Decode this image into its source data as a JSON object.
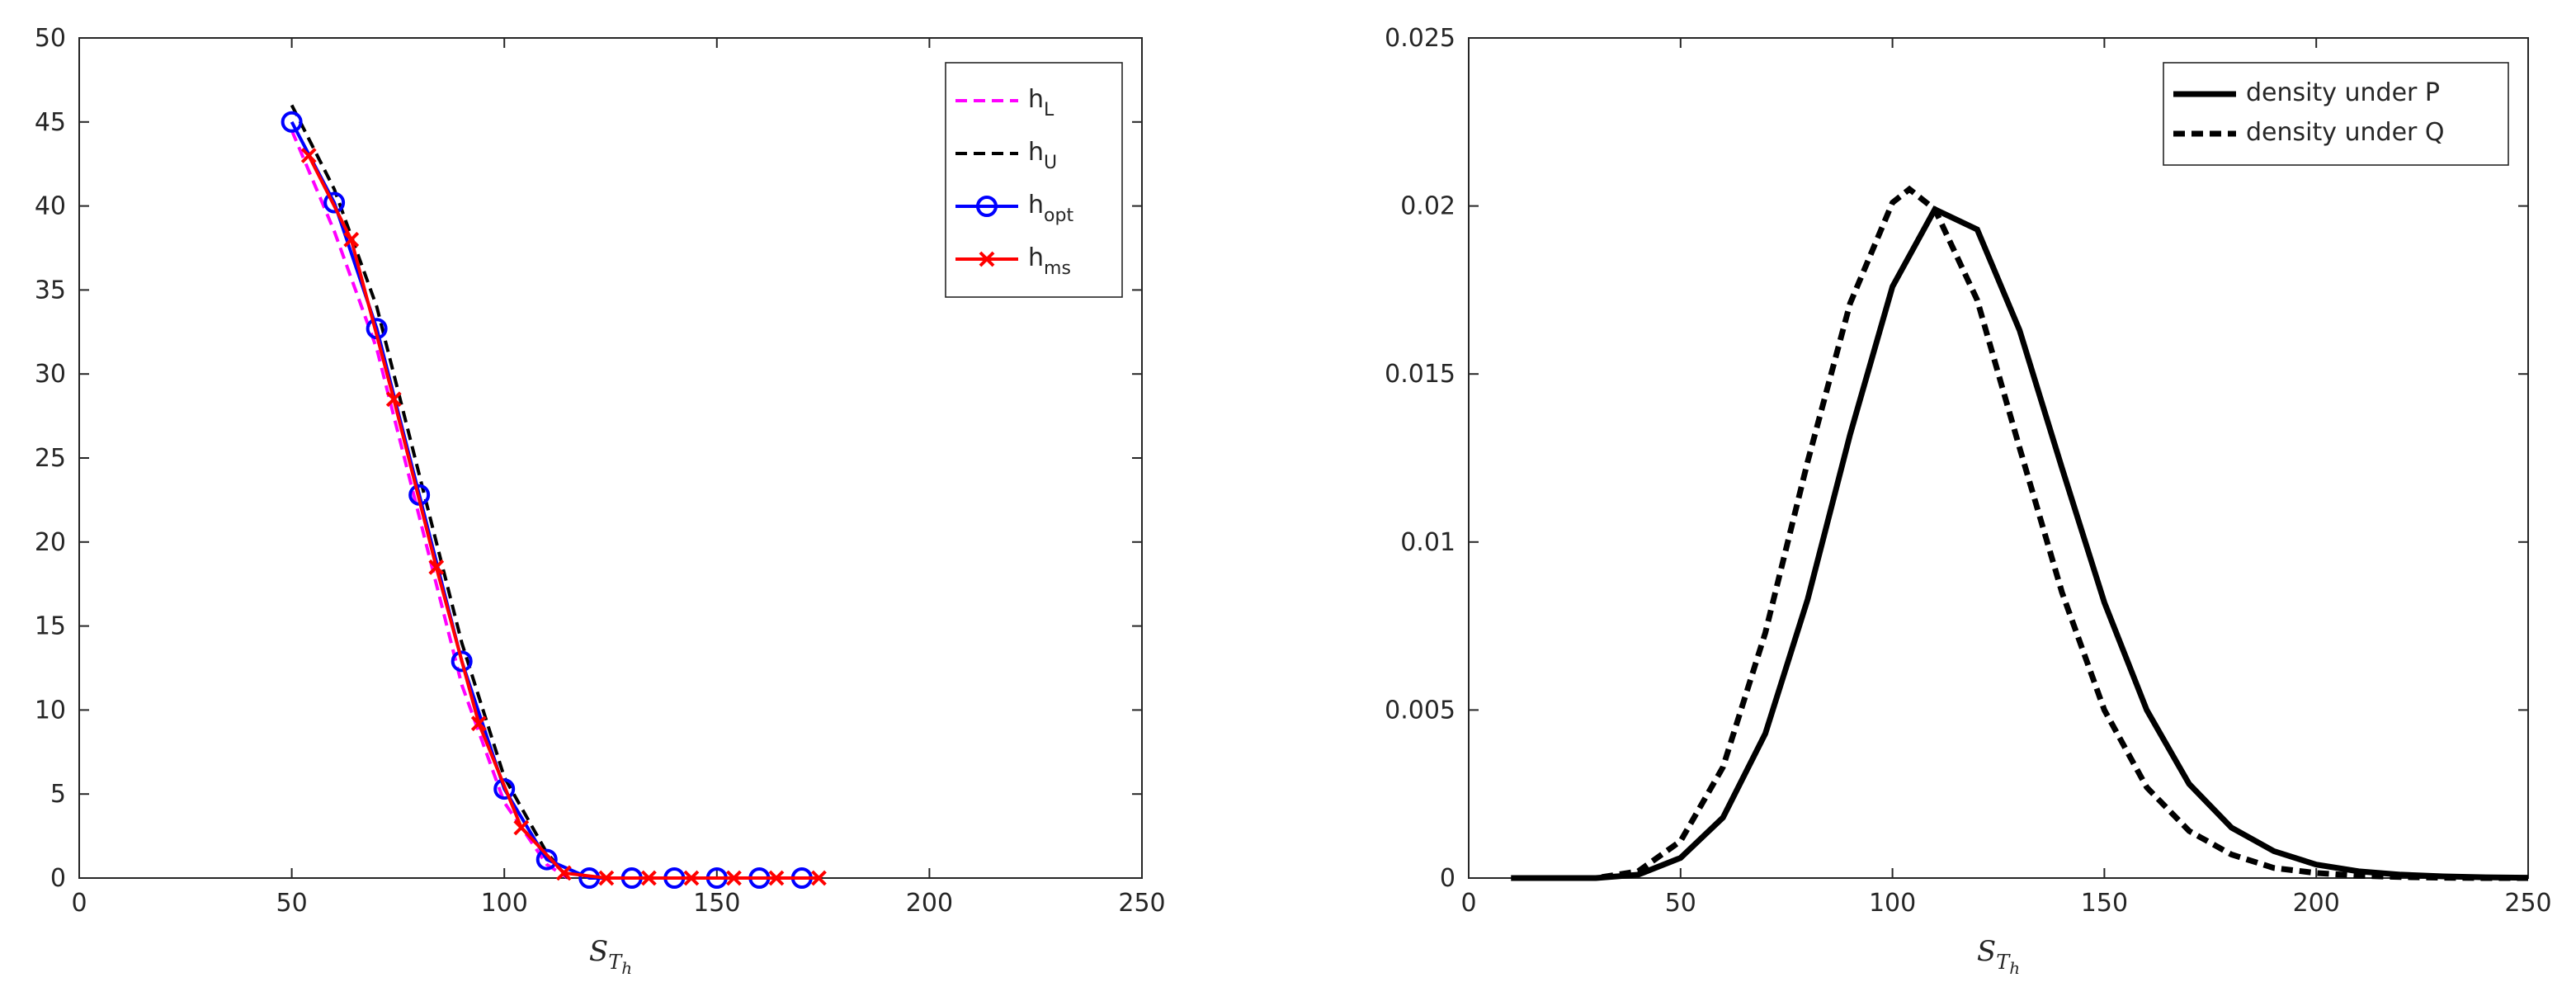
{
  "chart_data": [
    {
      "type": "line",
      "xlabel": {
        "base": "S",
        "sub": "T",
        "subsub": "h"
      },
      "xlim": [
        0,
        250
      ],
      "xticks": [
        0,
        50,
        100,
        150,
        200,
        250
      ],
      "ylim": [
        0,
        50
      ],
      "yticks": [
        0,
        5,
        10,
        15,
        20,
        25,
        30,
        35,
        40,
        45,
        50
      ],
      "legend": "upper-right",
      "series": [
        {
          "name": "h",
          "sub": "L",
          "color": "#ff00ff",
          "dash": "dashed",
          "marker": "none",
          "x": [
            50,
            60,
            70,
            80,
            90,
            100,
            110,
            115
          ],
          "values": [
            44.5,
            38.5,
            31.5,
            21.5,
            11.5,
            4.5,
            0.8,
            0
          ]
        },
        {
          "name": "h",
          "sub": "U",
          "color": "#000000",
          "dash": "dashed",
          "marker": "none",
          "x": [
            50,
            60,
            70,
            80,
            90,
            100,
            110,
            115
          ],
          "values": [
            46,
            41,
            34,
            24,
            14,
            6,
            1.5,
            0
          ]
        },
        {
          "name": "h",
          "sub": "opt",
          "color": "#0000ff",
          "dash": "solid",
          "marker": "circle",
          "x": [
            50,
            60,
            70,
            80,
            90,
            100,
            110,
            120,
            130,
            140,
            150,
            160,
            170
          ],
          "values": [
            45,
            40.2,
            32.7,
            22.8,
            12.9,
            5.3,
            1.1,
            0,
            0,
            0,
            0,
            0,
            0
          ]
        },
        {
          "name": "h",
          "sub": "ms",
          "color": "#ff0000",
          "dash": "solid",
          "marker": "cross",
          "x": [
            54,
            64,
            74,
            84,
            94,
            104,
            114,
            124,
            134,
            144,
            154,
            164,
            174
          ],
          "values": [
            43,
            38,
            28.5,
            18.5,
            9.2,
            3,
            0.3,
            0,
            0,
            0,
            0,
            0,
            0
          ]
        }
      ]
    },
    {
      "type": "line",
      "xlabel": {
        "base": "S",
        "sub": "T",
        "subsub": "h"
      },
      "xlim": [
        0,
        250
      ],
      "xticks": [
        0,
        50,
        100,
        150,
        200,
        250
      ],
      "ylim": [
        0,
        0.025
      ],
      "yticks": [
        0,
        0.005,
        0.01,
        0.015,
        0.02,
        0.025
      ],
      "legend": "upper-right",
      "series": [
        {
          "name": "density under P",
          "color": "#000000",
          "dash": "solid",
          "marker": "none",
          "x": [
            10,
            20,
            30,
            40,
            50,
            60,
            70,
            80,
            90,
            100,
            110,
            120,
            130,
            140,
            150,
            160,
            170,
            180,
            190,
            200,
            210,
            220,
            230,
            240,
            250
          ],
          "values": [
            0,
            0,
            0,
            0.0001,
            0.0006,
            0.0018,
            0.0043,
            0.0083,
            0.0132,
            0.0176,
            0.0199,
            0.0193,
            0.0163,
            0.0122,
            0.0082,
            0.005,
            0.0028,
            0.0015,
            0.0008,
            0.0004,
            0.0002,
            0.0001,
            5e-05,
            2e-05,
            1e-05
          ]
        },
        {
          "name": "density under Q",
          "color": "#000000",
          "dash": "dashed",
          "marker": "none",
          "x": [
            10,
            20,
            30,
            40,
            50,
            60,
            70,
            80,
            90,
            100,
            104,
            110,
            120,
            130,
            140,
            150,
            160,
            170,
            180,
            190,
            200,
            210,
            220,
            230,
            240,
            250
          ],
          "values": [
            0,
            0,
            0,
            0.0002,
            0.0011,
            0.0033,
            0.0073,
            0.0124,
            0.0171,
            0.0201,
            0.0205,
            0.0199,
            0.0172,
            0.0128,
            0.0085,
            0.005,
            0.0027,
            0.0014,
            0.0007,
            0.0003,
            0.00015,
            7e-05,
            3e-05,
            1e-05,
            0,
            0
          ]
        }
      ]
    }
  ]
}
